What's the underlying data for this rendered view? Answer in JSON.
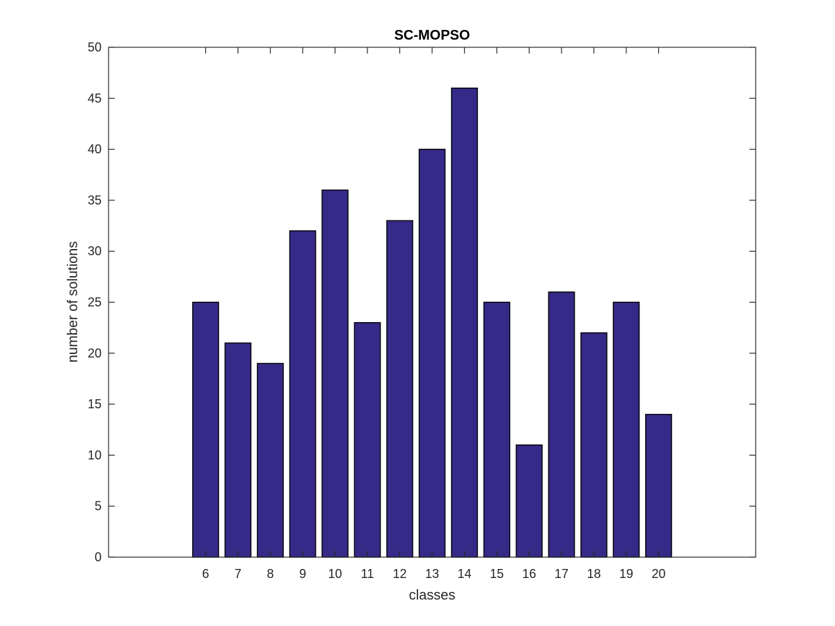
{
  "chart_data": {
    "type": "bar",
    "title": "SC-MOPSO",
    "xlabel": "classes",
    "ylabel": "number of solutions",
    "categories": [
      "6",
      "7",
      "8",
      "9",
      "10",
      "11",
      "12",
      "13",
      "14",
      "15",
      "16",
      "17",
      "18",
      "19",
      "20"
    ],
    "values": [
      25,
      21,
      19,
      32,
      36,
      23,
      33,
      40,
      46,
      25,
      11,
      26,
      22,
      25,
      14
    ],
    "ylim": [
      0,
      50
    ],
    "yticks": [
      0,
      5,
      10,
      15,
      20,
      25,
      30,
      35,
      40,
      45,
      50
    ],
    "xlim": [
      3,
      23
    ],
    "grid": false,
    "bar_color": "#352A87",
    "bar_edge_color": "#000000"
  }
}
